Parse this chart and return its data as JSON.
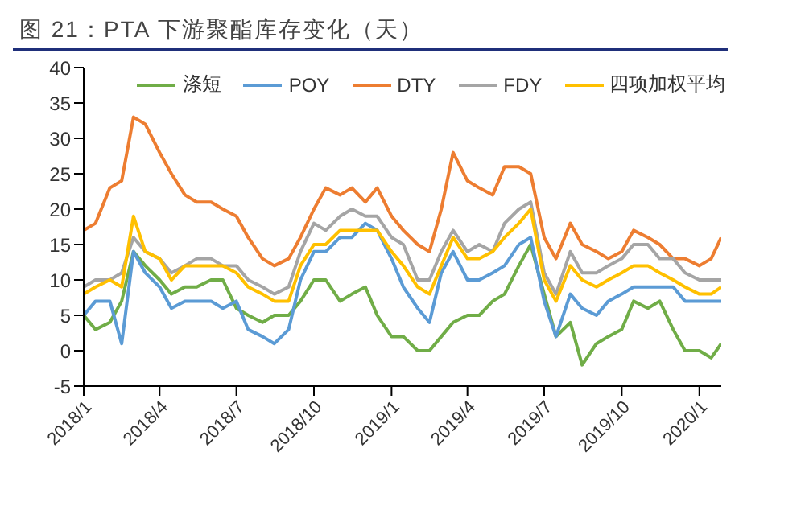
{
  "chart_data": {
    "type": "line",
    "title": "图 21：PTA 下游聚酯库存变化（天）",
    "x": [
      "2018-01-01",
      "2018-01-15",
      "2018-02-01",
      "2018-02-15",
      "2018-03-01",
      "2018-03-15",
      "2018-04-01",
      "2018-04-15",
      "2018-05-01",
      "2018-05-15",
      "2018-06-01",
      "2018-06-15",
      "2018-07-01",
      "2018-07-15",
      "2018-08-01",
      "2018-08-15",
      "2018-09-01",
      "2018-09-15",
      "2018-10-01",
      "2018-10-15",
      "2018-11-01",
      "2018-11-15",
      "2018-12-01",
      "2018-12-15",
      "2019-01-01",
      "2019-01-15",
      "2019-02-01",
      "2019-02-15",
      "2019-03-01",
      "2019-03-15",
      "2019-04-01",
      "2019-04-15",
      "2019-05-01",
      "2019-05-15",
      "2019-06-01",
      "2019-06-15",
      "2019-07-01",
      "2019-07-15",
      "2019-08-01",
      "2019-08-15",
      "2019-09-01",
      "2019-09-15",
      "2019-10-01",
      "2019-10-15",
      "2019-11-01",
      "2019-11-15",
      "2019-12-01",
      "2019-12-15",
      "2020-01-01",
      "2020-01-15",
      "2020-01-27"
    ],
    "series": [
      {
        "name": "涤短",
        "color": "#70ad47",
        "values": [
          5,
          3,
          4,
          7,
          14,
          12,
          10,
          8,
          9,
          9,
          10,
          10,
          6,
          5,
          4,
          5,
          5,
          7,
          10,
          10,
          7,
          8,
          9,
          5,
          2,
          2,
          0,
          0,
          2,
          4,
          5,
          5,
          7,
          8,
          12,
          15,
          8,
          2,
          4,
          -2,
          1,
          2,
          3,
          7,
          6,
          7,
          3,
          0,
          0,
          -1,
          1
        ]
      },
      {
        "name": "POY",
        "color": "#5b9bd5",
        "values": [
          5,
          7,
          7,
          1,
          14,
          11,
          9,
          6,
          7,
          7,
          7,
          6,
          7,
          3,
          2,
          1,
          3,
          10,
          14,
          14,
          16,
          16,
          18,
          17,
          13,
          9,
          6,
          4,
          11,
          14,
          10,
          10,
          11,
          12,
          15,
          16,
          7,
          2,
          8,
          6,
          5,
          7,
          8,
          9,
          9,
          9,
          9,
          7,
          7,
          7,
          7
        ]
      },
      {
        "name": "DTY",
        "color": "#ed7d31",
        "values": [
          17,
          18,
          23,
          24,
          33,
          32,
          28,
          25,
          22,
          21,
          21,
          20,
          19,
          16,
          13,
          12,
          13,
          16,
          20,
          23,
          22,
          23,
          21,
          23,
          19,
          17,
          15,
          14,
          20,
          28,
          24,
          23,
          22,
          26,
          26,
          25,
          16,
          13,
          18,
          15,
          14,
          13,
          14,
          17,
          16,
          15,
          13,
          13,
          12,
          13,
          16
        ]
      },
      {
        "name": "FDY",
        "color": "#a5a5a5",
        "values": [
          9,
          10,
          10,
          11,
          16,
          14,
          13,
          11,
          12,
          13,
          13,
          12,
          12,
          10,
          9,
          8,
          9,
          14,
          18,
          17,
          19,
          20,
          19,
          19,
          16,
          15,
          10,
          10,
          14,
          17,
          14,
          15,
          14,
          18,
          20,
          21,
          11,
          8,
          14,
          11,
          11,
          12,
          13,
          15,
          15,
          13,
          13,
          11,
          10,
          10,
          10
        ]
      },
      {
        "name": "四项加权平均",
        "color": "#ffc000",
        "values": [
          8,
          9,
          10,
          9,
          19,
          14,
          13,
          10,
          12,
          12,
          12,
          12,
          11,
          9,
          8,
          7,
          7,
          12,
          15,
          15,
          17,
          17,
          17,
          17,
          14,
          12,
          9,
          8,
          12,
          16,
          13,
          13,
          14,
          16,
          18,
          20,
          10,
          7,
          12,
          10,
          9,
          10,
          11,
          12,
          12,
          11,
          10,
          9,
          8,
          8,
          9
        ]
      }
    ],
    "xlim": [
      "2018-01-01",
      "2020-01-27"
    ],
    "xticks": [
      {
        "value": "2018-01-01",
        "label": "2018/1"
      },
      {
        "value": "2018-04-01",
        "label": "2018/4"
      },
      {
        "value": "2018-07-01",
        "label": "2018/7"
      },
      {
        "value": "2018-10-01",
        "label": "2018/10"
      },
      {
        "value": "2019-01-01",
        "label": "2019/1"
      },
      {
        "value": "2019-04-01",
        "label": "2019/4"
      },
      {
        "value": "2019-07-01",
        "label": "2019/7"
      },
      {
        "value": "2019-10-01",
        "label": "2019/10"
      },
      {
        "value": "2020-01-01",
        "label": "2020/1"
      }
    ],
    "ylim": [
      -5,
      40
    ],
    "yticks": [
      -5,
      0,
      5,
      10,
      15,
      20,
      25,
      30,
      35,
      40
    ],
    "legend": "top",
    "marker": "none",
    "line_style": "solid"
  }
}
